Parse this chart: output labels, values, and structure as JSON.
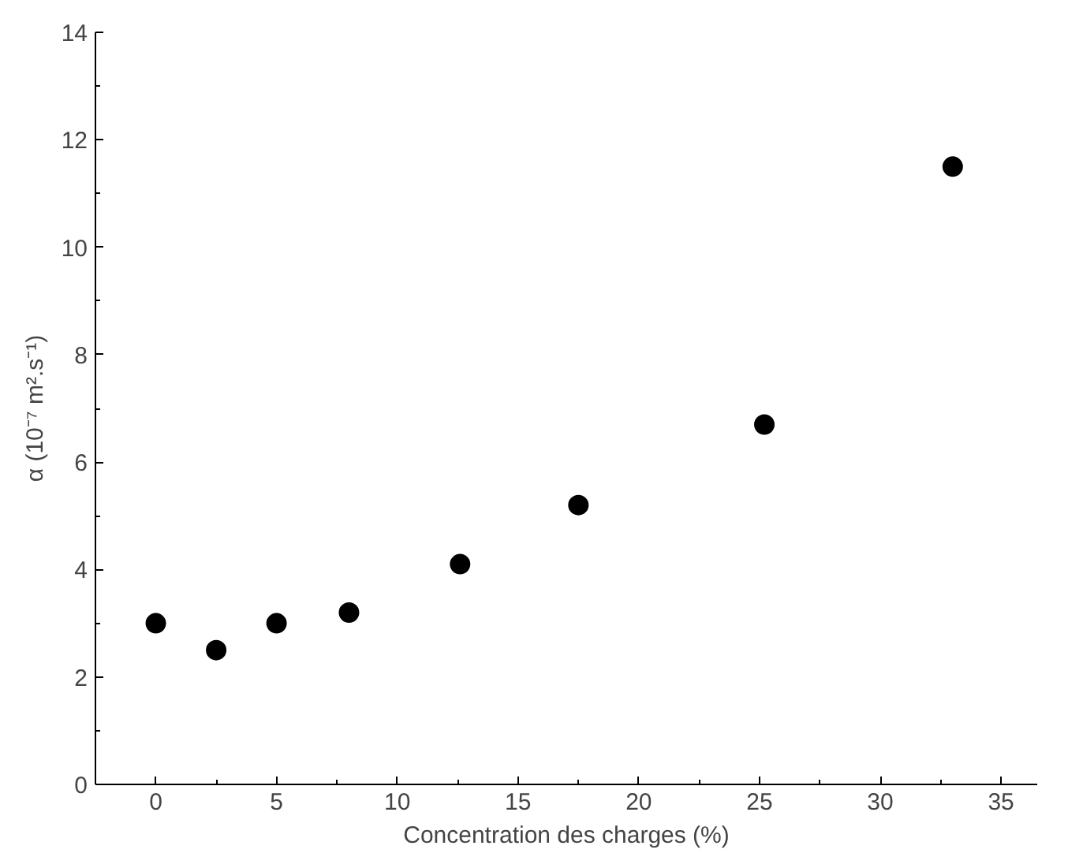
{
  "chart_data": {
    "type": "scatter",
    "xlabel": "Concentration des charges (%)",
    "ylabel": "α (10⁻⁷ m².s⁻¹)",
    "x": [
      0,
      2.5,
      5,
      8,
      12.6,
      17.5,
      25.2,
      33
    ],
    "series": [
      {
        "color": "#000000",
        "values": [
          3,
          2.5,
          3,
          3.2,
          4.1,
          5.2,
          6.7,
          11.5
        ]
      }
    ],
    "xlim": [
      -2.5,
      36.5
    ],
    "ylim": [
      0,
      14
    ],
    "xticks": [
      0,
      5,
      10,
      15,
      20,
      25,
      30,
      35
    ],
    "yticks": [
      0,
      2,
      4,
      6,
      8,
      10,
      12,
      14
    ],
    "marker": "circle",
    "grid": false
  }
}
